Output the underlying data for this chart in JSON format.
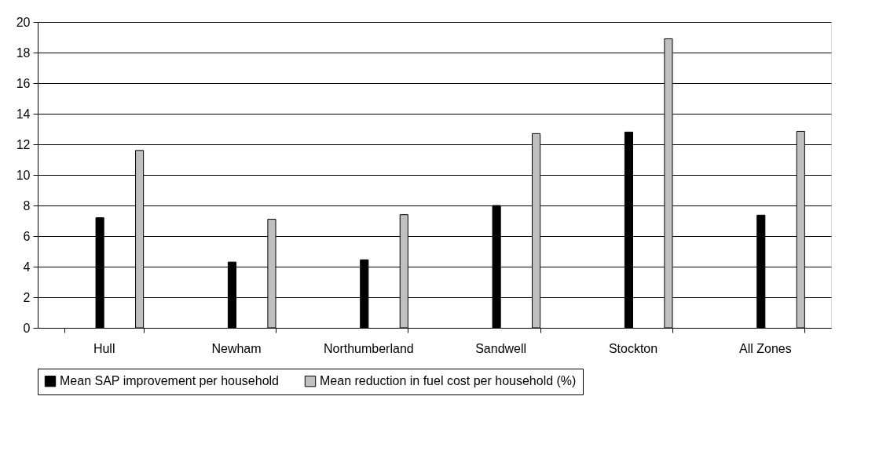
{
  "chart_data": {
    "type": "bar",
    "categories": [
      "Hull",
      "Newham",
      "Northumberland",
      "Sandwell",
      "Stockton",
      "All Zones"
    ],
    "series": [
      {
        "name": "Mean SAP improvement per household",
        "color": "#000000",
        "values": [
          7.2,
          4.3,
          4.45,
          8.0,
          12.8,
          7.37
        ]
      },
      {
        "name": "Mean reduction in fuel cost per household (%)",
        "color": "#c0c0c0",
        "values": [
          11.6,
          7.1,
          7.4,
          12.7,
          18.9,
          12.85
        ]
      }
    ],
    "ylim": [
      0,
      20
    ],
    "yticks": [
      0,
      2,
      4,
      6,
      8,
      10,
      12,
      14,
      16,
      18,
      20
    ],
    "grid": "y",
    "legend": "bottom"
  }
}
